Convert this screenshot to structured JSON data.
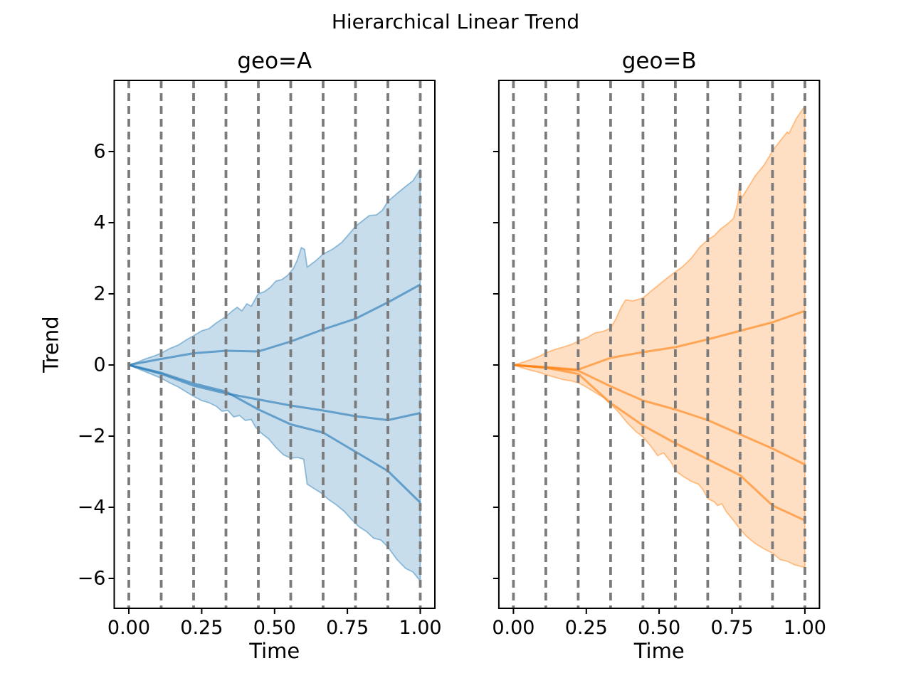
{
  "chart_data": {
    "type": "line",
    "title": "Hierarchical Linear Trend",
    "gridline_color": "#7b7b7b",
    "xlim": [
      -0.05,
      1.05
    ],
    "ylim": [
      -6.84,
      8.0
    ],
    "xticks": {
      "values": [
        0,
        0.25,
        0.5,
        0.75,
        1.0
      ],
      "labels": [
        "0.00",
        "0.25",
        "0.50",
        "0.75",
        "1.00"
      ]
    },
    "yticks": {
      "values": [
        6,
        4,
        2,
        0,
        -2,
        -4,
        -6
      ]
    },
    "subplots": [
      {
        "id": "geo-a",
        "title": "geo=A",
        "xlabel": "Time",
        "ylabel": "Trend",
        "color": "#1f77b4",
        "yticklabels": [
          "6",
          "4",
          "2",
          "0",
          "−2",
          "−4",
          "−6"
        ],
        "changepoints": [
          0,
          0.1111,
          0.2222,
          0.3333,
          0.4444,
          0.5556,
          0.6667,
          0.7778,
          0.8889,
          1.0
        ],
        "samples": {
          "x": [
            0,
            0.1111,
            0.2222,
            0.3333,
            0.4444,
            0.5556,
            0.6667,
            0.7778,
            0.8889,
            1.0
          ],
          "series": [
            [
              0,
              0.17,
              0.33,
              0.4,
              0.38,
              0.66,
              1.0,
              1.3,
              1.76,
              2.26
            ],
            [
              0,
              -0.25,
              -0.58,
              -0.8,
              -0.97,
              -1.14,
              -1.28,
              -1.44,
              -1.55,
              -1.35
            ],
            [
              0,
              -0.22,
              -0.52,
              -0.75,
              -1.25,
              -1.67,
              -1.9,
              -2.44,
              -2.98,
              -3.87
            ]
          ]
        },
        "band": {
          "upper": [
            [
              0,
              0
            ],
            [
              0.03,
              0.08
            ],
            [
              0.06,
              0.18
            ],
            [
              0.09,
              0.26
            ],
            [
              0.111,
              0.33
            ],
            [
              0.14,
              0.46
            ],
            [
              0.17,
              0.56
            ],
            [
              0.2,
              0.72
            ],
            [
              0.222,
              0.82
            ],
            [
              0.25,
              0.96
            ],
            [
              0.275,
              1.02
            ],
            [
              0.3,
              1.18
            ],
            [
              0.333,
              1.36
            ],
            [
              0.355,
              1.52
            ],
            [
              0.372,
              1.62
            ],
            [
              0.388,
              1.52
            ],
            [
              0.405,
              1.72
            ],
            [
              0.42,
              1.65
            ],
            [
              0.444,
              2.0
            ],
            [
              0.465,
              2.06
            ],
            [
              0.485,
              2.18
            ],
            [
              0.505,
              2.36
            ],
            [
              0.525,
              2.4
            ],
            [
              0.545,
              2.52
            ],
            [
              0.565,
              2.72
            ],
            [
              0.578,
              2.95
            ],
            [
              0.592,
              3.3
            ],
            [
              0.603,
              3.25
            ],
            [
              0.612,
              2.75
            ],
            [
              0.64,
              2.92
            ],
            [
              0.667,
              3.12
            ],
            [
              0.7,
              3.26
            ],
            [
              0.73,
              3.44
            ],
            [
              0.76,
              3.72
            ],
            [
              0.778,
              3.9
            ],
            [
              0.8,
              4.04
            ],
            [
              0.825,
              4.2
            ],
            [
              0.85,
              4.22
            ],
            [
              0.87,
              4.35
            ],
            [
              0.889,
              4.6
            ],
            [
              0.92,
              4.82
            ],
            [
              0.95,
              5.02
            ],
            [
              0.975,
              5.18
            ],
            [
              1,
              5.5
            ]
          ],
          "lower": [
            [
              0,
              0
            ],
            [
              0.03,
              -0.1
            ],
            [
              0.06,
              -0.2
            ],
            [
              0.09,
              -0.3
            ],
            [
              0.111,
              -0.37
            ],
            [
              0.14,
              -0.5
            ],
            [
              0.17,
              -0.62
            ],
            [
              0.2,
              -0.77
            ],
            [
              0.222,
              -0.88
            ],
            [
              0.25,
              -1.0
            ],
            [
              0.275,
              -1.06
            ],
            [
              0.3,
              -1.16
            ],
            [
              0.32,
              -1.3
            ],
            [
              0.34,
              -1.28
            ],
            [
              0.36,
              -1.46
            ],
            [
              0.38,
              -1.42
            ],
            [
              0.4,
              -1.56
            ],
            [
              0.42,
              -1.53
            ],
            [
              0.435,
              -1.75
            ],
            [
              0.455,
              -1.92
            ],
            [
              0.48,
              -2.08
            ],
            [
              0.505,
              -2.32
            ],
            [
              0.53,
              -2.52
            ],
            [
              0.556,
              -2.62
            ],
            [
              0.58,
              -2.6
            ],
            [
              0.6,
              -2.65
            ],
            [
              0.612,
              -3.35
            ],
            [
              0.635,
              -3.47
            ],
            [
              0.66,
              -3.6
            ],
            [
              0.685,
              -3.78
            ],
            [
              0.71,
              -3.92
            ],
            [
              0.74,
              -4.12
            ],
            [
              0.765,
              -4.35
            ],
            [
              0.79,
              -4.55
            ],
            [
              0.815,
              -4.68
            ],
            [
              0.84,
              -4.87
            ],
            [
              0.865,
              -4.92
            ],
            [
              0.889,
              -5.12
            ],
            [
              0.92,
              -5.47
            ],
            [
              0.95,
              -5.72
            ],
            [
              0.975,
              -5.82
            ],
            [
              1,
              -6.07
            ]
          ]
        }
      },
      {
        "id": "geo-b",
        "title": "geo=B",
        "xlabel": "Time",
        "ylabel": "",
        "color": "#ff7f0e",
        "yticklabels": [],
        "changepoints": [
          0,
          0.1111,
          0.2222,
          0.3333,
          0.4444,
          0.5556,
          0.6667,
          0.7778,
          0.8889,
          1.0
        ],
        "samples": {
          "x": [
            0,
            0.1111,
            0.2222,
            0.3333,
            0.4444,
            0.5556,
            0.6667,
            0.7778,
            0.8889,
            1.0
          ],
          "series": [
            [
              0,
              -0.06,
              -0.13,
              0.2,
              0.36,
              0.5,
              0.72,
              0.96,
              1.2,
              1.52
            ],
            [
              0,
              -0.07,
              -0.16,
              -0.6,
              -1.0,
              -1.25,
              -1.55,
              -1.95,
              -2.35,
              -2.8
            ],
            [
              0,
              -0.08,
              -0.25,
              -1.07,
              -1.7,
              -2.2,
              -2.65,
              -3.1,
              -3.95,
              -4.37
            ]
          ]
        },
        "band": {
          "upper": [
            [
              0,
              0
            ],
            [
              0.03,
              0.07
            ],
            [
              0.06,
              0.15
            ],
            [
              0.09,
              0.25
            ],
            [
              0.111,
              0.34
            ],
            [
              0.14,
              0.43
            ],
            [
              0.17,
              0.5
            ],
            [
              0.2,
              0.58
            ],
            [
              0.222,
              0.67
            ],
            [
              0.25,
              0.76
            ],
            [
              0.28,
              0.9
            ],
            [
              0.31,
              0.95
            ],
            [
              0.333,
              1.03
            ],
            [
              0.352,
              1.3
            ],
            [
              0.37,
              1.63
            ],
            [
              0.385,
              1.83
            ],
            [
              0.41,
              1.8
            ],
            [
              0.43,
              1.85
            ],
            [
              0.444,
              1.88
            ],
            [
              0.47,
              2.06
            ],
            [
              0.5,
              2.26
            ],
            [
              0.53,
              2.46
            ],
            [
              0.556,
              2.62
            ],
            [
              0.58,
              2.76
            ],
            [
              0.61,
              3.0
            ],
            [
              0.64,
              3.32
            ],
            [
              0.667,
              3.52
            ],
            [
              0.69,
              3.64
            ],
            [
              0.71,
              3.82
            ],
            [
              0.735,
              3.97
            ],
            [
              0.755,
              4.12
            ],
            [
              0.768,
              4.5
            ],
            [
              0.775,
              5.06
            ],
            [
              0.782,
              4.68
            ],
            [
              0.8,
              4.92
            ],
            [
              0.83,
              5.32
            ],
            [
              0.86,
              5.62
            ],
            [
              0.889,
              6.02
            ],
            [
              0.915,
              6.3
            ],
            [
              0.94,
              6.55
            ],
            [
              0.945,
              6.5
            ],
            [
              0.97,
              6.92
            ],
            [
              1,
              7.28
            ]
          ],
          "lower": [
            [
              0,
              0
            ],
            [
              0.03,
              -0.08
            ],
            [
              0.06,
              -0.15
            ],
            [
              0.09,
              -0.21
            ],
            [
              0.111,
              -0.27
            ],
            [
              0.14,
              -0.34
            ],
            [
              0.17,
              -0.41
            ],
            [
              0.2,
              -0.45
            ],
            [
              0.222,
              -0.5
            ],
            [
              0.25,
              -0.62
            ],
            [
              0.28,
              -0.77
            ],
            [
              0.31,
              -0.92
            ],
            [
              0.333,
              -1.1
            ],
            [
              0.36,
              -1.32
            ],
            [
              0.39,
              -1.62
            ],
            [
              0.42,
              -1.87
            ],
            [
              0.444,
              -2.02
            ],
            [
              0.47,
              -2.27
            ],
            [
              0.495,
              -2.55
            ],
            [
              0.515,
              -2.47
            ],
            [
              0.54,
              -2.72
            ],
            [
              0.556,
              -2.97
            ],
            [
              0.58,
              -3.12
            ],
            [
              0.61,
              -3.27
            ],
            [
              0.635,
              -3.35
            ],
            [
              0.65,
              -3.5
            ],
            [
              0.667,
              -3.76
            ],
            [
              0.69,
              -3.85
            ],
            [
              0.7,
              -3.95
            ],
            [
              0.715,
              -3.9
            ],
            [
              0.73,
              -4.12
            ],
            [
              0.755,
              -4.37
            ],
            [
              0.778,
              -4.62
            ],
            [
              0.8,
              -4.82
            ],
            [
              0.83,
              -5.02
            ],
            [
              0.86,
              -5.17
            ],
            [
              0.889,
              -5.29
            ],
            [
              0.915,
              -5.47
            ],
            [
              0.94,
              -5.52
            ],
            [
              0.965,
              -5.62
            ],
            [
              1,
              -5.69
            ]
          ]
        }
      }
    ]
  }
}
